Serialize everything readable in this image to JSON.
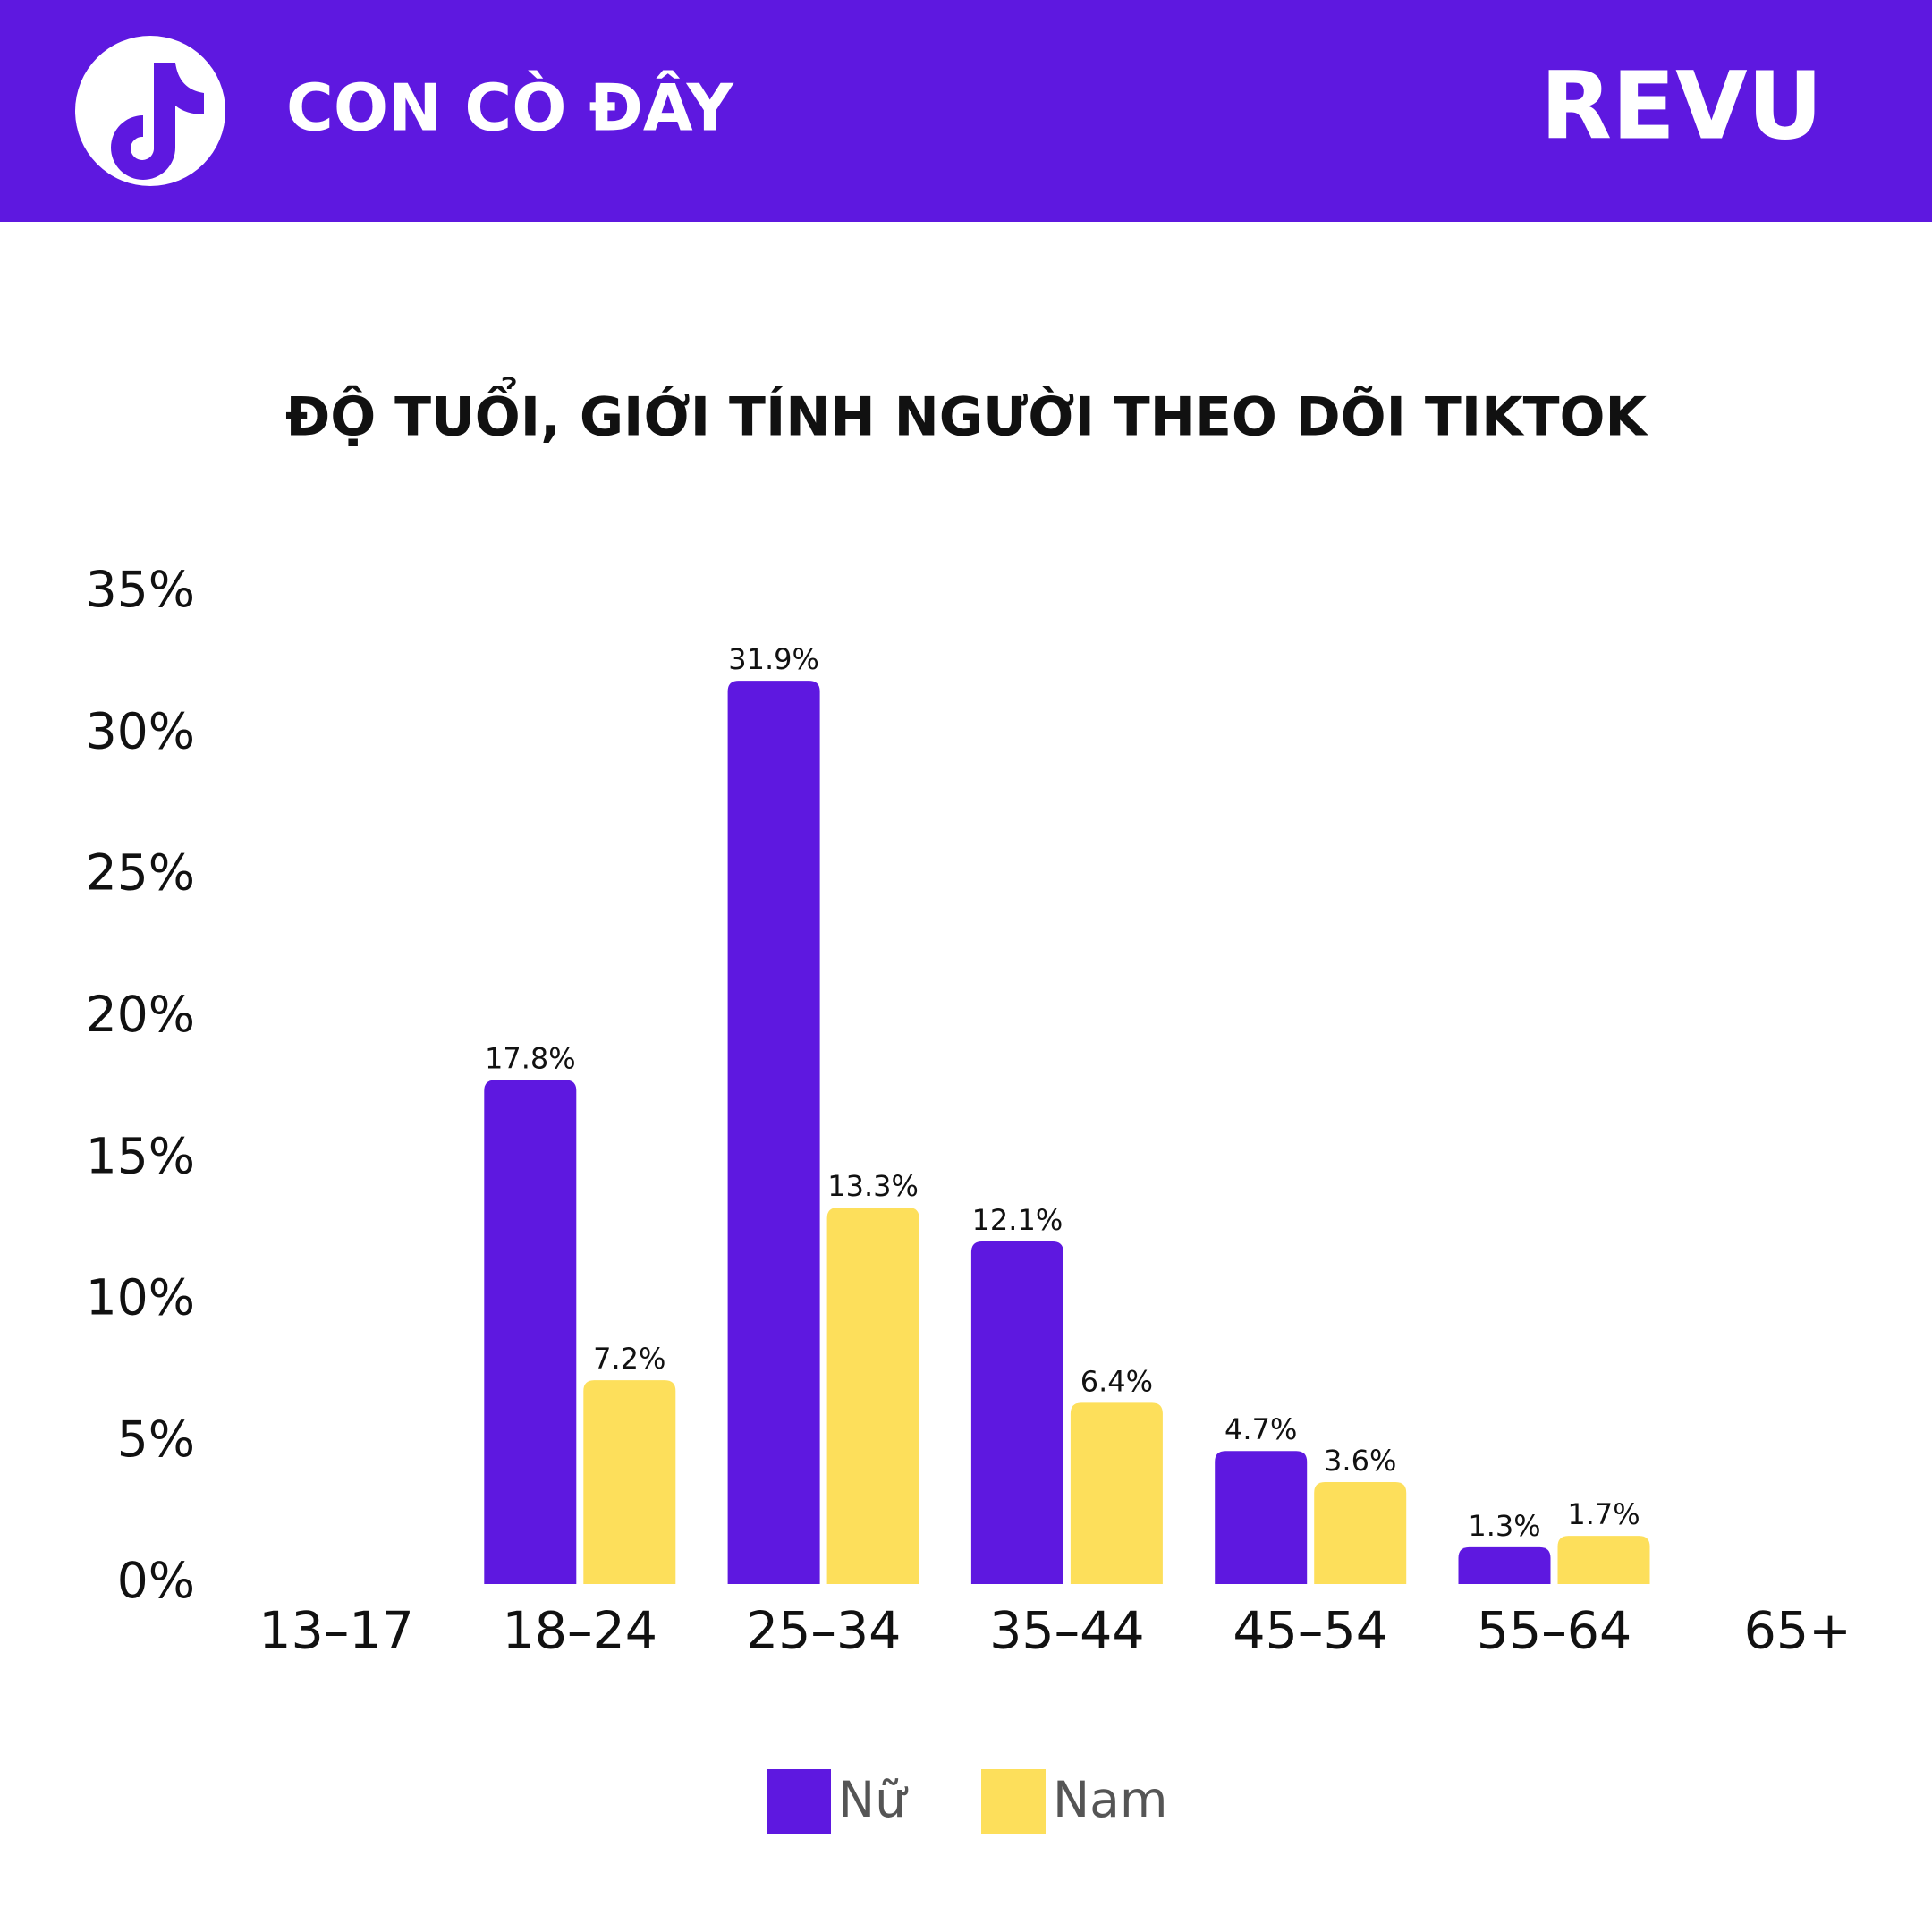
{
  "header": {
    "brand": "CON CÒ ĐÂY",
    "logo": "REVU"
  },
  "chart_data": {
    "type": "bar",
    "title": "ĐỘ TUỔI, GIỚI TÍNH NGƯỜI THEO DÕI TIKTOK",
    "categories": [
      "13–17",
      "18–24",
      "25–34",
      "35–44",
      "45–54",
      "55–64",
      "65+"
    ],
    "series": [
      {
        "name": "Nữ",
        "color": "#5e18e0",
        "values": [
          null,
          17.8,
          31.9,
          12.1,
          4.7,
          1.3,
          null
        ],
        "value_labels": [
          null,
          "17.8%",
          "31.9%",
          "12.1%",
          "4.7%",
          "1.3%",
          null
        ]
      },
      {
        "name": "Nam",
        "color": "#fddf5b",
        "values": [
          null,
          7.2,
          13.3,
          6.4,
          3.6,
          1.7,
          null
        ],
        "value_labels": [
          null,
          "7.2%",
          "13.3%",
          "6.4%",
          "3.6%",
          "1.7%",
          null
        ]
      }
    ],
    "ylim": [
      0,
      35
    ],
    "yticks": [
      {
        "value": 0,
        "label": "0%"
      },
      {
        "value": 5,
        "label": "5%"
      },
      {
        "value": 10,
        "label": "10%"
      },
      {
        "value": 15,
        "label": "15%"
      },
      {
        "value": 20,
        "label": "20%"
      },
      {
        "value": 25,
        "label": "25%"
      },
      {
        "value": 30,
        "label": "30%"
      },
      {
        "value": 35,
        "label": "35%"
      }
    ],
    "grid": false,
    "legend": "bottom"
  }
}
